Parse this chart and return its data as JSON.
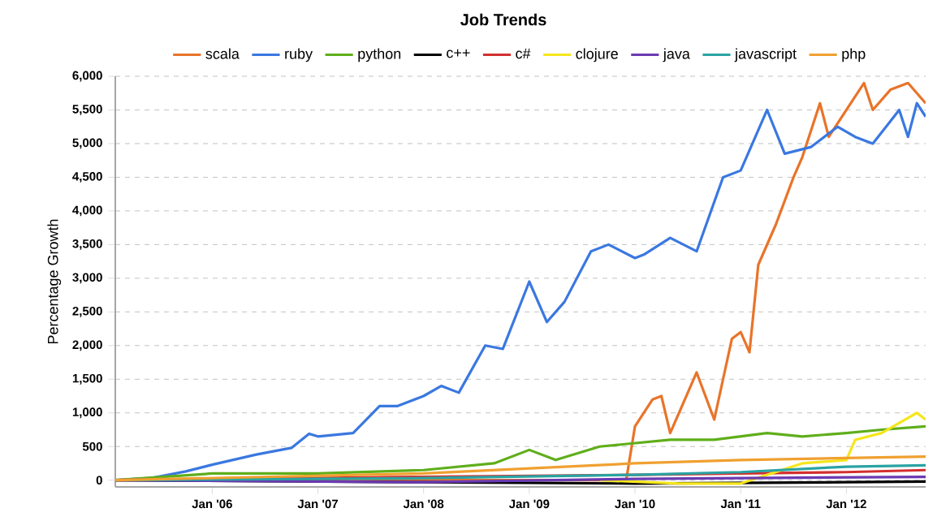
{
  "chart_data": {
    "type": "line",
    "title": "Job Trends",
    "ylabel": "Percentage Growth",
    "xlim": [
      "2005-02",
      "2012-10"
    ],
    "ylim": [
      -100,
      6000
    ],
    "xticks": [
      {
        "value": "2006-01",
        "label": "Jan '06"
      },
      {
        "value": "2007-01",
        "label": "Jan '07"
      },
      {
        "value": "2008-01",
        "label": "Jan '08"
      },
      {
        "value": "2009-01",
        "label": "Jan '09"
      },
      {
        "value": "2010-01",
        "label": "Jan '10"
      },
      {
        "value": "2011-01",
        "label": "Jan '11"
      },
      {
        "value": "2012-01",
        "label": "Jan '12"
      }
    ],
    "yticks": [
      {
        "value": 0,
        "label": "0"
      },
      {
        "value": 500,
        "label": "500"
      },
      {
        "value": 1000,
        "label": "1,000"
      },
      {
        "value": 1500,
        "label": "1,500"
      },
      {
        "value": 2000,
        "label": "2,000"
      },
      {
        "value": 2500,
        "label": "2,500"
      },
      {
        "value": 3000,
        "label": "3,000"
      },
      {
        "value": 3500,
        "label": "3,500"
      },
      {
        "value": 4000,
        "label": "4,000"
      },
      {
        "value": 4500,
        "label": "4,500"
      },
      {
        "value": 5000,
        "label": "5,000"
      },
      {
        "value": 5500,
        "label": "5,500"
      },
      {
        "value": 6000,
        "label": "6,000"
      }
    ],
    "grid": "y",
    "legend": "top",
    "marker": "none",
    "line_style": "solid",
    "series": [
      {
        "name": "scala",
        "color": "#e8742a",
        "x": [
          "2005-02",
          "2007-01",
          "2009-06",
          "2009-12",
          "2010-01",
          "2010-03",
          "2010-04",
          "2010-05",
          "2010-08",
          "2010-10",
          "2010-12",
          "2011-01",
          "2011-02",
          "2011-03",
          "2011-05",
          "2011-07",
          "2011-08",
          "2011-10",
          "2011-11",
          "2012-02",
          "2012-03",
          "2012-04",
          "2012-06",
          "2012-08",
          "2012-10"
        ],
        "values": [
          0,
          0,
          0,
          0,
          800,
          1200,
          1250,
          700,
          1600,
          900,
          2100,
          2200,
          1900,
          3200,
          3800,
          4500,
          4800,
          5600,
          5100,
          5700,
          5900,
          5500,
          5800,
          5900,
          5600
        ]
      },
      {
        "name": "ruby",
        "color": "#3a78e0",
        "x": [
          "2005-02",
          "2005-06",
          "2005-10",
          "2006-01",
          "2006-06",
          "2006-10",
          "2006-12",
          "2007-01",
          "2007-05",
          "2007-08",
          "2007-10",
          "2008-01",
          "2008-03",
          "2008-05",
          "2008-08",
          "2008-10",
          "2009-01",
          "2009-03",
          "2009-05",
          "2009-08",
          "2009-10",
          "2010-01",
          "2010-02",
          "2010-05",
          "2010-08",
          "2010-11",
          "2011-01",
          "2011-04",
          "2011-06",
          "2011-09",
          "2011-12",
          "2012-02",
          "2012-04",
          "2012-07",
          "2012-08",
          "2012-09",
          "2012-10"
        ],
        "values": [
          0,
          30,
          130,
          230,
          380,
          480,
          690,
          650,
          700,
          1100,
          1100,
          1250,
          1400,
          1300,
          2000,
          1950,
          2950,
          2350,
          2650,
          3400,
          3500,
          3300,
          3350,
          3600,
          3400,
          4500,
          4600,
          5500,
          4850,
          4950,
          5250,
          5100,
          5000,
          5500,
          5100,
          5600,
          5400
        ]
      },
      {
        "name": "python",
        "color": "#5fae1a",
        "x": [
          "2005-02",
          "2006-01",
          "2007-01",
          "2008-01",
          "2008-09",
          "2009-01",
          "2009-04",
          "2009-09",
          "2010-05",
          "2010-10",
          "2011-04",
          "2011-08",
          "2012-01",
          "2012-05",
          "2012-10"
        ],
        "values": [
          0,
          100,
          100,
          150,
          250,
          450,
          300,
          500,
          600,
          600,
          700,
          650,
          700,
          750,
          800
        ]
      },
      {
        "name": "c++",
        "color": "#000000",
        "x": [
          "2005-02",
          "2008-01",
          "2010-01",
          "2011-01",
          "2012-01",
          "2012-10"
        ],
        "values": [
          0,
          -30,
          -50,
          -40,
          -30,
          -20
        ]
      },
      {
        "name": "c#",
        "color": "#d32f2f",
        "x": [
          "2005-02",
          "2008-01",
          "2010-01",
          "2011-01",
          "2012-01",
          "2012-10"
        ],
        "values": [
          0,
          50,
          80,
          100,
          120,
          150
        ]
      },
      {
        "name": "clojure",
        "color": "#f5e61b",
        "x": [
          "2009-09",
          "2010-06",
          "2011-01",
          "2011-08",
          "2012-01",
          "2012-02",
          "2012-05",
          "2012-09",
          "2012-10"
        ],
        "values": [
          0,
          -50,
          -50,
          250,
          300,
          600,
          700,
          1000,
          900
        ]
      },
      {
        "name": "java",
        "color": "#6a3ab2",
        "x": [
          "2005-02",
          "2008-01",
          "2010-01",
          "2012-10"
        ],
        "values": [
          0,
          -30,
          20,
          50
        ]
      },
      {
        "name": "javascript",
        "color": "#2aa3a3",
        "x": [
          "2005-02",
          "2008-01",
          "2010-01",
          "2011-01",
          "2012-01",
          "2012-10"
        ],
        "values": [
          0,
          30,
          80,
          120,
          200,
          220
        ]
      },
      {
        "name": "php",
        "color": "#f0a030",
        "x": [
          "2005-02",
          "2008-01",
          "2010-01",
          "2011-01",
          "2012-01",
          "2012-10"
        ],
        "values": [
          0,
          100,
          250,
          300,
          330,
          350
        ]
      }
    ]
  }
}
